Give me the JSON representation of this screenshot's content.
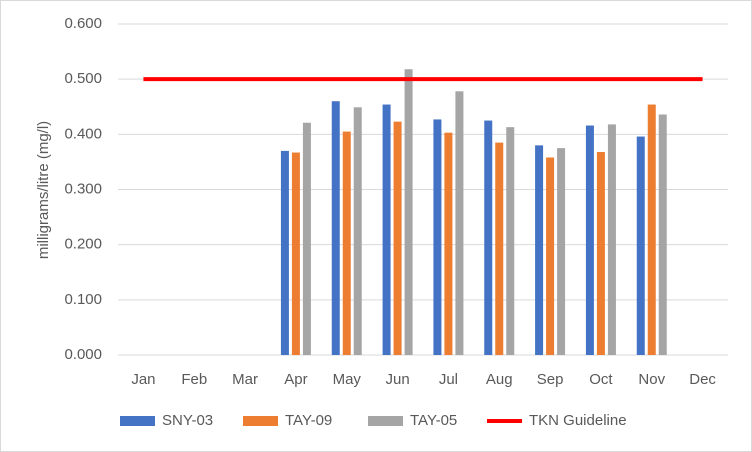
{
  "chart_data": {
    "type": "bar",
    "y_label": "milligrams/litre (mg/l)",
    "categories": [
      "Jan",
      "Feb",
      "Mar",
      "Apr",
      "May",
      "Jun",
      "Jul",
      "Aug",
      "Sep",
      "Oct",
      "Nov",
      "Dec"
    ],
    "series": [
      {
        "name": "SNY-03",
        "color": "#4472c4",
        "values": [
          null,
          null,
          null,
          0.37,
          0.46,
          0.454,
          0.427,
          0.425,
          0.38,
          0.416,
          0.396,
          null
        ]
      },
      {
        "name": "TAY-09",
        "color": "#ed7d31",
        "values": [
          null,
          null,
          null,
          0.367,
          0.405,
          0.423,
          0.403,
          0.385,
          0.358,
          0.368,
          0.454,
          null
        ]
      },
      {
        "name": "TAY-05",
        "color": "#a5a5a5",
        "values": [
          null,
          null,
          null,
          0.421,
          0.449,
          0.518,
          0.478,
          0.413,
          0.375,
          0.418,
          0.436,
          null
        ]
      },
      {
        "name": "TKN Guideline",
        "color": "#ff0000",
        "type": "line",
        "values": [
          0.5,
          0.5,
          0.5,
          0.5,
          0.5,
          0.5,
          0.5,
          0.5,
          0.5,
          0.5,
          0.5,
          0.5
        ]
      }
    ],
    "ylim": [
      0,
      0.6
    ],
    "yticks": [
      {
        "value": 0,
        "label": "0.000"
      },
      {
        "value": 0.1,
        "label": "0.100"
      },
      {
        "value": 0.2,
        "label": "0.200"
      },
      {
        "value": 0.3,
        "label": "0.300"
      },
      {
        "value": 0.4,
        "label": "0.400"
      },
      {
        "value": 0.5,
        "label": "0.500"
      },
      {
        "value": 0.6,
        "label": "0.600"
      }
    ],
    "grid": true,
    "legend": "bottom"
  }
}
